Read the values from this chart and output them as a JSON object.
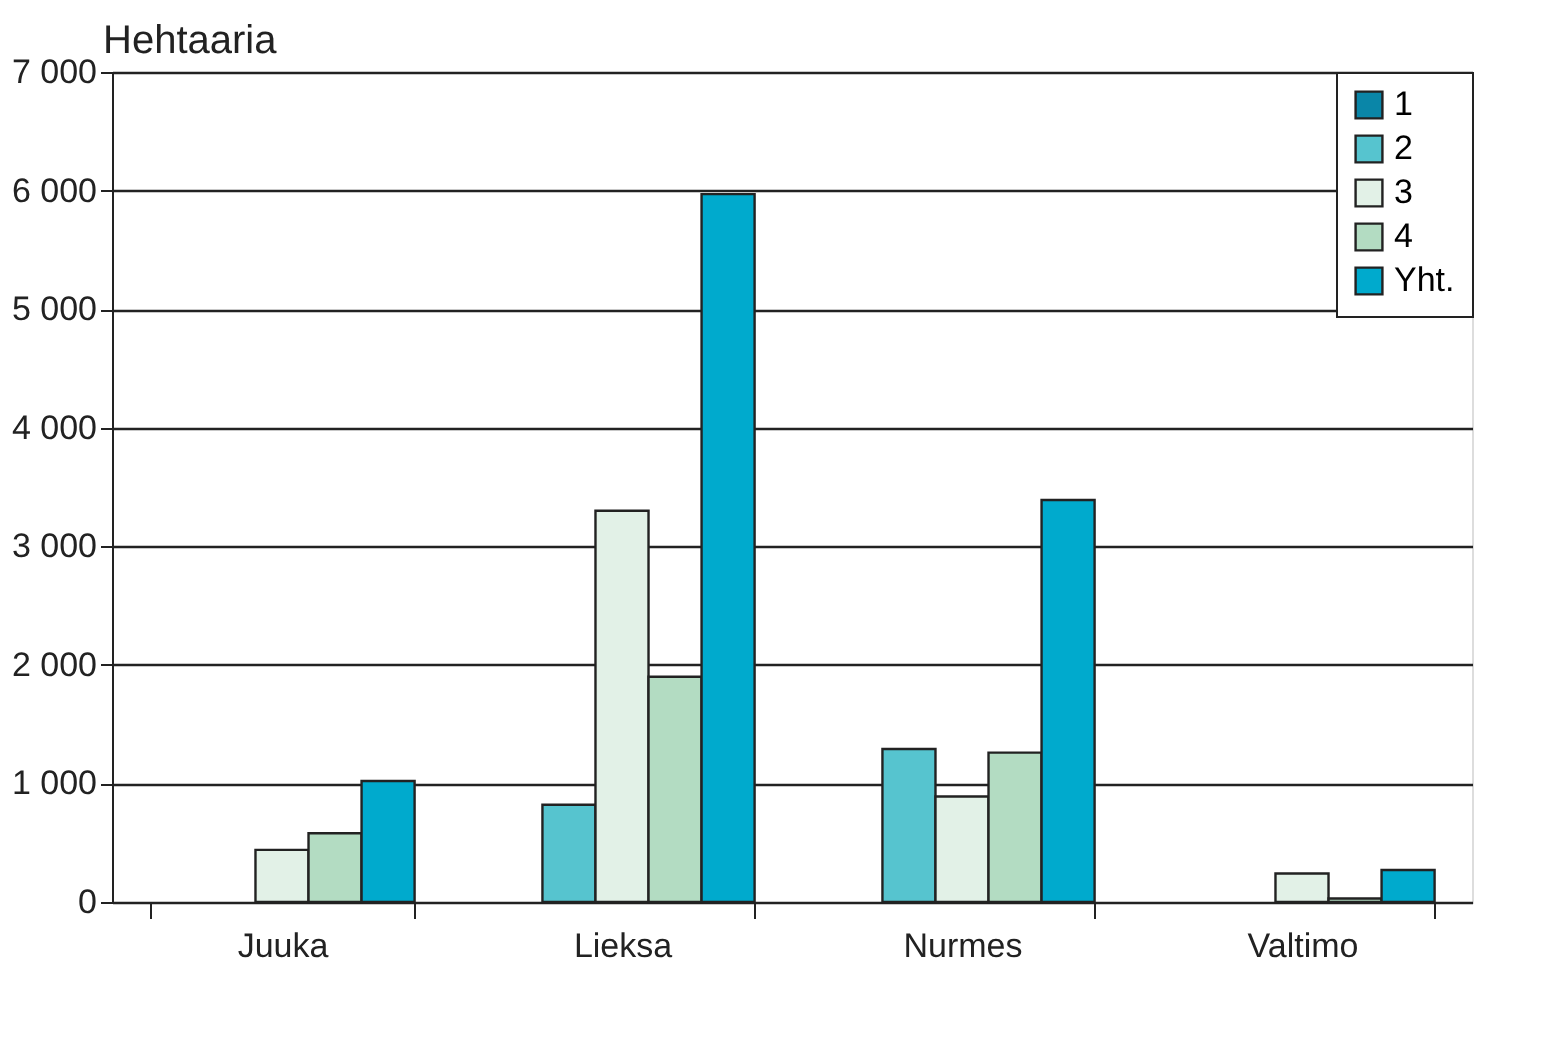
{
  "chart_data": {
    "type": "bar",
    "ylabel": "Hehtaaria",
    "categories": [
      "Juuka",
      "Lieksa",
      "Nurmes",
      "Valtimo"
    ],
    "series": [
      {
        "name": "1",
        "color": "#0a86a8",
        "values": [
          null,
          null,
          null,
          null
        ]
      },
      {
        "name": "2",
        "color": "#56c4cf",
        "values": [
          null,
          820,
          1290,
          null
        ]
      },
      {
        "name": "3",
        "color": "#e2f1e7",
        "values": [
          440,
          3300,
          890,
          240
        ]
      },
      {
        "name": "4",
        "color": "#b3dcc2",
        "values": [
          580,
          1900,
          1260,
          30
        ]
      },
      {
        "name": "Yht.",
        "color": "#00aacd",
        "values": [
          1020,
          5970,
          3390,
          270
        ]
      }
    ],
    "ylim": [
      0,
      7000
    ],
    "yticks": [
      {
        "value": 0,
        "label": "0"
      },
      {
        "value": 1000,
        "label": "1 000"
      },
      {
        "value": 2000,
        "label": "2 000"
      },
      {
        "value": 3000,
        "label": "3 000"
      },
      {
        "value": 4000,
        "label": "4 000"
      },
      {
        "value": 5000,
        "label": "5 000"
      },
      {
        "value": 6000,
        "label": "6 000"
      },
      {
        "value": 7000,
        "label": "7 000"
      }
    ],
    "grid": "y",
    "legend": "top right"
  }
}
